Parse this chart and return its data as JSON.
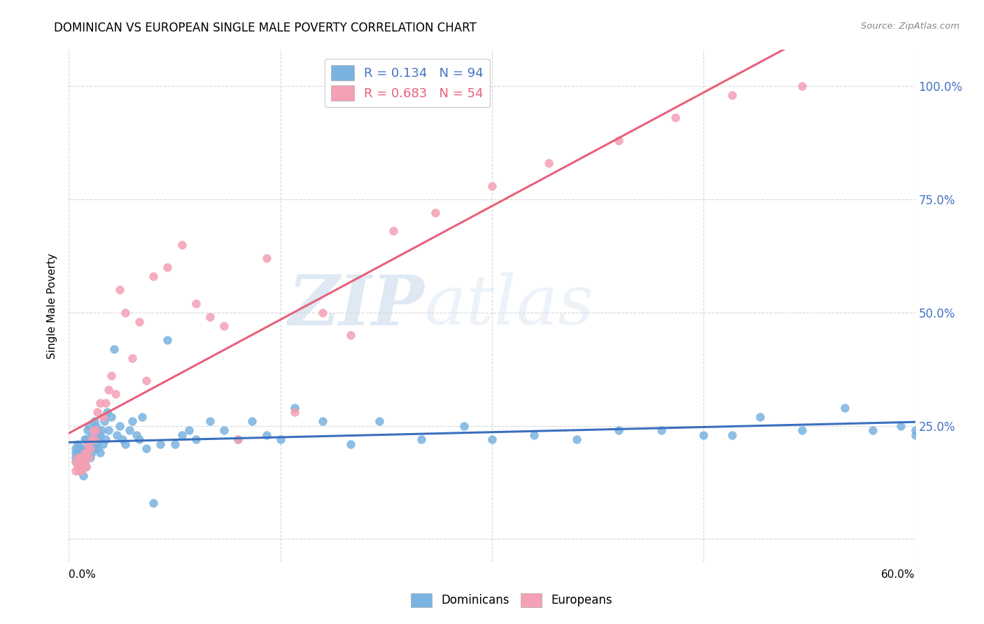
{
  "title": "DOMINICAN VS EUROPEAN SINGLE MALE POVERTY CORRELATION CHART",
  "source": "Source: ZipAtlas.com",
  "ylabel": "Single Male Poverty",
  "yticks": [
    0.0,
    0.25,
    0.5,
    0.75,
    1.0
  ],
  "ytick_labels": [
    "",
    "25.0%",
    "50.0%",
    "75.0%",
    "100.0%"
  ],
  "xmin": 0.0,
  "xmax": 0.6,
  "ymin": -0.05,
  "ymax": 1.08,
  "dominican_color": "#7ab3e0",
  "european_color": "#f4a0b5",
  "dominican_line_color": "#3a6fbf",
  "european_line_color": "#e8607a",
  "legend_dominican_label": "R = 0.134   N = 94",
  "legend_european_label": "R = 0.683   N = 54",
  "legend_bottom_dominican": "Dominicans",
  "legend_bottom_european": "Europeans",
  "dominican_x": [
    0.005,
    0.005,
    0.005,
    0.005,
    0.006,
    0.006,
    0.006,
    0.007,
    0.007,
    0.007,
    0.008,
    0.008,
    0.008,
    0.009,
    0.009,
    0.009,
    0.01,
    0.01,
    0.01,
    0.01,
    0.011,
    0.011,
    0.012,
    0.012,
    0.012,
    0.013,
    0.013,
    0.014,
    0.014,
    0.015,
    0.015,
    0.016,
    0.016,
    0.017,
    0.018,
    0.018,
    0.019,
    0.019,
    0.02,
    0.02,
    0.021,
    0.022,
    0.022,
    0.023,
    0.024,
    0.025,
    0.026,
    0.027,
    0.028,
    0.03,
    0.032,
    0.034,
    0.036,
    0.038,
    0.04,
    0.043,
    0.045,
    0.048,
    0.05,
    0.052,
    0.055,
    0.06,
    0.065,
    0.07,
    0.075,
    0.08,
    0.085,
    0.09,
    0.1,
    0.11,
    0.12,
    0.13,
    0.14,
    0.15,
    0.16,
    0.18,
    0.2,
    0.22,
    0.25,
    0.28,
    0.3,
    0.33,
    0.36,
    0.39,
    0.42,
    0.45,
    0.47,
    0.49,
    0.52,
    0.55,
    0.57,
    0.59,
    0.6,
    0.6
  ],
  "dominican_y": [
    0.17,
    0.18,
    0.19,
    0.2,
    0.17,
    0.19,
    0.21,
    0.16,
    0.18,
    0.2,
    0.15,
    0.17,
    0.19,
    0.16,
    0.18,
    0.2,
    0.14,
    0.16,
    0.18,
    0.2,
    0.17,
    0.22,
    0.16,
    0.18,
    0.22,
    0.19,
    0.24,
    0.2,
    0.25,
    0.18,
    0.22,
    0.19,
    0.23,
    0.2,
    0.22,
    0.26,
    0.21,
    0.25,
    0.2,
    0.24,
    0.22,
    0.19,
    0.23,
    0.24,
    0.21,
    0.26,
    0.22,
    0.28,
    0.24,
    0.27,
    0.42,
    0.23,
    0.25,
    0.22,
    0.21,
    0.24,
    0.26,
    0.23,
    0.22,
    0.27,
    0.2,
    0.08,
    0.21,
    0.44,
    0.21,
    0.23,
    0.24,
    0.22,
    0.26,
    0.24,
    0.22,
    0.26,
    0.23,
    0.22,
    0.29,
    0.26,
    0.21,
    0.26,
    0.22,
    0.25,
    0.22,
    0.23,
    0.22,
    0.24,
    0.24,
    0.23,
    0.23,
    0.27,
    0.24,
    0.29,
    0.24,
    0.25,
    0.24,
    0.23
  ],
  "european_x": [
    0.005,
    0.005,
    0.006,
    0.006,
    0.007,
    0.007,
    0.008,
    0.008,
    0.009,
    0.009,
    0.01,
    0.01,
    0.011,
    0.011,
    0.012,
    0.013,
    0.013,
    0.014,
    0.015,
    0.016,
    0.017,
    0.018,
    0.019,
    0.02,
    0.022,
    0.024,
    0.026,
    0.028,
    0.03,
    0.033,
    0.036,
    0.04,
    0.045,
    0.05,
    0.055,
    0.06,
    0.07,
    0.08,
    0.09,
    0.1,
    0.11,
    0.12,
    0.14,
    0.16,
    0.18,
    0.2,
    0.23,
    0.26,
    0.3,
    0.34,
    0.39,
    0.43,
    0.47,
    0.52
  ],
  "european_y": [
    0.15,
    0.17,
    0.16,
    0.18,
    0.15,
    0.17,
    0.16,
    0.18,
    0.15,
    0.17,
    0.16,
    0.18,
    0.17,
    0.19,
    0.16,
    0.19,
    0.21,
    0.18,
    0.2,
    0.22,
    0.24,
    0.22,
    0.24,
    0.28,
    0.3,
    0.27,
    0.3,
    0.33,
    0.36,
    0.32,
    0.55,
    0.5,
    0.4,
    0.48,
    0.35,
    0.58,
    0.6,
    0.65,
    0.52,
    0.49,
    0.47,
    0.22,
    0.62,
    0.28,
    0.5,
    0.45,
    0.68,
    0.72,
    0.78,
    0.83,
    0.88,
    0.93,
    0.98,
    1.0
  ],
  "watermark_zip": "ZIP",
  "watermark_atlas": "atlas",
  "background_color": "#ffffff",
  "grid_color": "#d8d8d8",
  "xtick_positions": [
    0.0,
    0.15,
    0.3,
    0.45,
    0.6
  ]
}
